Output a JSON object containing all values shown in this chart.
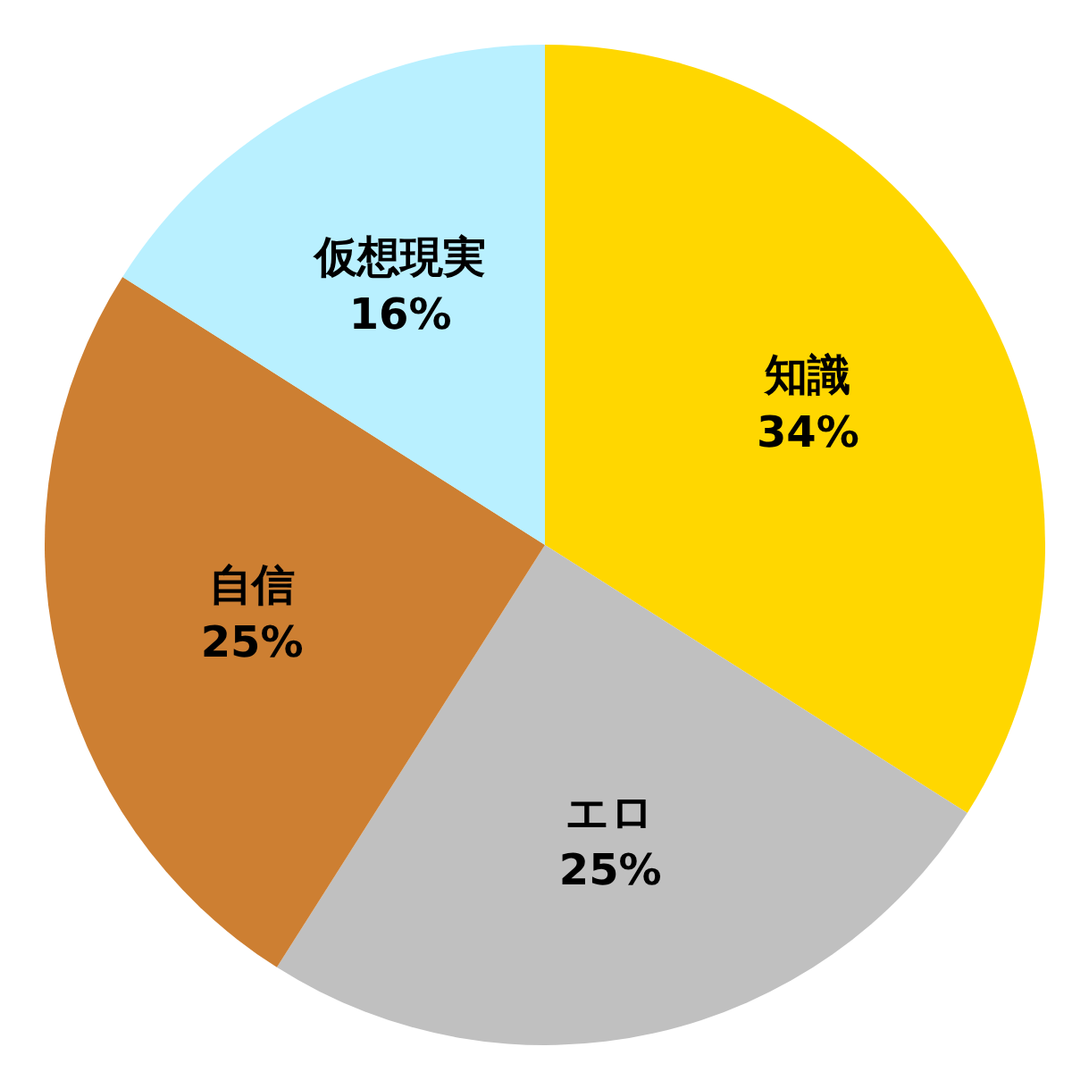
{
  "chart_data": {
    "type": "pie",
    "categories": [
      "知識",
      "エロ",
      "自信",
      "仮想現実"
    ],
    "values": [
      34,
      25,
      25,
      16
    ],
    "colors": [
      "#ffd700",
      "#c0c0c0",
      "#cd7f32",
      "#b9f0ff"
    ],
    "value_labels": [
      "34%",
      "25%",
      "25%",
      "16%"
    ],
    "legend": false
  }
}
